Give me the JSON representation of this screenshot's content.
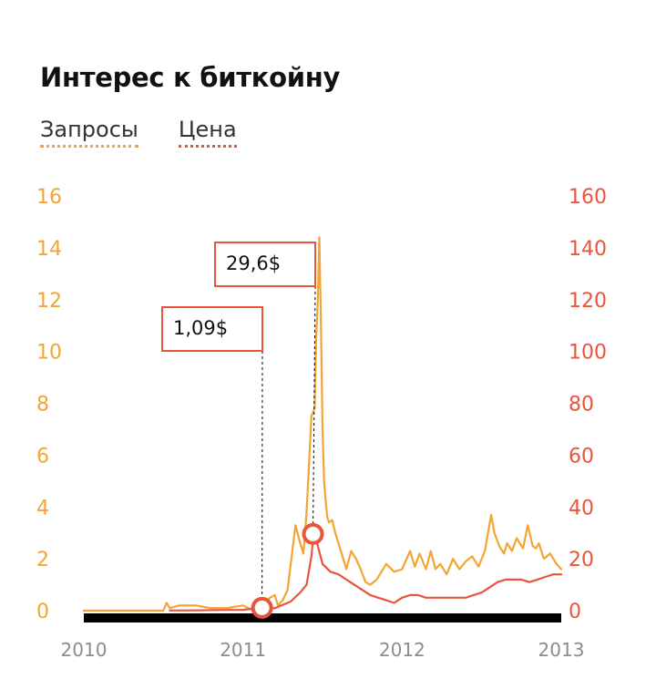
{
  "colors": {
    "requests": "#f2a534",
    "price": "#e8553a",
    "axis": "#000000"
  },
  "chart_data": {
    "type": "line",
    "title": "Интерес к биткойну",
    "legend": [
      "Запросы",
      "Цена"
    ],
    "xlim": [
      2010,
      2013
    ],
    "x_ticks": [
      "2010",
      "2011",
      "2012",
      "2013"
    ],
    "y_left_lim": [
      0,
      16
    ],
    "y_left_ticks": [
      "0",
      "2",
      "4",
      "6",
      "8",
      "10",
      "12",
      "14",
      "16"
    ],
    "y_right_lim": [
      0,
      160
    ],
    "y_right_ticks": [
      "0",
      "20",
      "40",
      "60",
      "80",
      "100",
      "120",
      "140",
      "160"
    ],
    "series": [
      {
        "name": "Запросы",
        "axis": "left",
        "x": [
          2010.0,
          2010.1,
          2010.2,
          2010.3,
          2010.4,
          2010.5,
          2010.52,
          2010.54,
          2010.6,
          2010.7,
          2010.8,
          2010.9,
          2011.0,
          2011.05,
          2011.1,
          2011.13,
          2011.17,
          2011.2,
          2011.22,
          2011.25,
          2011.28,
          2011.3,
          2011.33,
          2011.36,
          2011.38,
          2011.4,
          2011.43,
          2011.45,
          2011.46,
          2011.47,
          2011.48,
          2011.49,
          2011.5,
          2011.51,
          2011.52,
          2011.53,
          2011.54,
          2011.56,
          2011.58,
          2011.62,
          2011.65,
          2011.68,
          2011.71,
          2011.74,
          2011.77,
          2011.8,
          2011.84,
          2011.9,
          2011.95,
          2012.0,
          2012.05,
          2012.08,
          2012.11,
          2012.15,
          2012.18,
          2012.21,
          2012.24,
          2012.28,
          2012.32,
          2012.36,
          2012.4,
          2012.44,
          2012.48,
          2012.52,
          2012.56,
          2012.58,
          2012.61,
          2012.64,
          2012.66,
          2012.69,
          2012.72,
          2012.76,
          2012.79,
          2012.82,
          2012.84,
          2012.86,
          2012.89,
          2012.93,
          2012.97,
          2013.0
        ],
        "y": [
          0.0,
          0.0,
          0.0,
          0.0,
          0.0,
          0.0,
          0.3,
          0.1,
          0.2,
          0.2,
          0.1,
          0.1,
          0.2,
          0.05,
          0.1,
          0.3,
          0.5,
          0.6,
          0.2,
          0.4,
          0.8,
          1.8,
          3.3,
          2.6,
          2.2,
          3.8,
          7.5,
          7.8,
          10.5,
          12.0,
          14.4,
          11.0,
          7.0,
          5.0,
          4.2,
          3.6,
          3.4,
          3.5,
          3.0,
          2.2,
          1.6,
          2.3,
          2.0,
          1.6,
          1.1,
          1.0,
          1.2,
          1.8,
          1.5,
          1.6,
          2.3,
          1.7,
          2.2,
          1.6,
          2.3,
          1.6,
          1.8,
          1.4,
          2.0,
          1.6,
          1.9,
          2.1,
          1.7,
          2.3,
          3.7,
          3.0,
          2.5,
          2.2,
          2.6,
          2.3,
          2.8,
          2.4,
          3.3,
          2.5,
          2.4,
          2.6,
          2.0,
          2.2,
          1.8,
          1.6
        ]
      },
      {
        "name": "Цена",
        "axis": "right",
        "x": [
          2010.54,
          2010.7,
          2010.85,
          2011.0,
          2011.1,
          2011.13,
          2011.2,
          2011.3,
          2011.36,
          2011.4,
          2011.43,
          2011.44,
          2011.45,
          2011.47,
          2011.5,
          2011.55,
          2011.6,
          2011.65,
          2011.7,
          2011.75,
          2011.8,
          2011.85,
          2011.9,
          2011.95,
          2012.0,
          2012.05,
          2012.1,
          2012.15,
          2012.2,
          2012.25,
          2012.3,
          2012.35,
          2012.4,
          2012.45,
          2012.5,
          2012.55,
          2012.6,
          2012.65,
          2012.7,
          2012.75,
          2012.8,
          2012.85,
          2012.9,
          2012.95,
          2013.0
        ],
        "y": [
          0.07,
          0.1,
          0.25,
          0.3,
          0.9,
          1.09,
          0.9,
          3.5,
          7.0,
          10.0,
          21.0,
          27.0,
          29.6,
          25.0,
          18.0,
          15.0,
          14.0,
          12.0,
          10.0,
          8.0,
          6.0,
          5.0,
          4.0,
          3.0,
          5.0,
          6.0,
          6.0,
          5.0,
          5.0,
          5.0,
          5.0,
          5.0,
          5.0,
          6.0,
          7.0,
          9.0,
          11.0,
          12.0,
          12.0,
          12.0,
          11.0,
          12.0,
          13.0,
          14.0,
          14.0
        ]
      }
    ],
    "annotations": [
      {
        "label": "1,09$",
        "x": 2011.12,
        "y": 1.09,
        "axis": "right"
      },
      {
        "label": "29,6$",
        "x": 2011.44,
        "y": 29.6,
        "axis": "right"
      }
    ]
  }
}
